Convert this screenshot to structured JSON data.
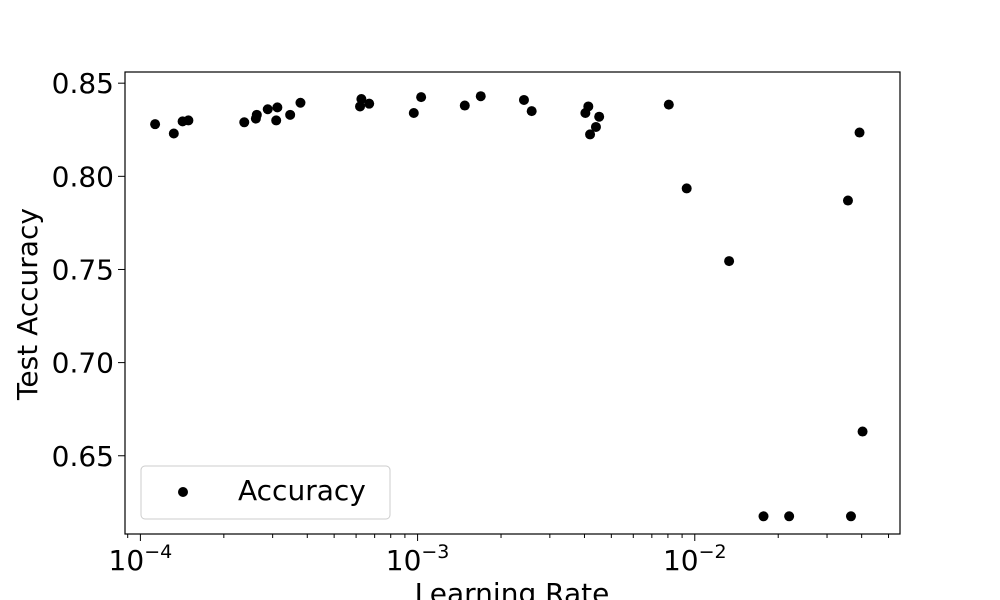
{
  "chart_data": {
    "type": "scatter",
    "xlabel": "Learning Rate",
    "ylabel": "Test Accuracy",
    "xscale": "log",
    "xlim": [
      8.8e-05,
      0.055
    ],
    "ylim": [
      0.608,
      0.856
    ],
    "x_ticks": [
      {
        "value": 0.0001,
        "base": "10",
        "exp": "−4"
      },
      {
        "value": 0.001,
        "base": "10",
        "exp": "−3"
      },
      {
        "value": 0.01,
        "base": "10",
        "exp": "−2"
      }
    ],
    "y_ticks": [
      {
        "value": 0.65,
        "label": "0.65"
      },
      {
        "value": 0.7,
        "label": "0.70"
      },
      {
        "value": 0.75,
        "label": "0.75"
      },
      {
        "value": 0.8,
        "label": "0.80"
      },
      {
        "value": 0.85,
        "label": "0.85"
      }
    ],
    "grid": false,
    "legend": {
      "position": "lower-left",
      "entries": [
        "Accuracy"
      ]
    },
    "series": [
      {
        "name": "Accuracy",
        "color": "#000000",
        "points": [
          {
            "x": 0.000113,
            "y": 0.828
          },
          {
            "x": 0.000132,
            "y": 0.823
          },
          {
            "x": 0.000142,
            "y": 0.8295
          },
          {
            "x": 0.000149,
            "y": 0.83
          },
          {
            "x": 0.000237,
            "y": 0.829
          },
          {
            "x": 0.000261,
            "y": 0.831
          },
          {
            "x": 0.000263,
            "y": 0.833
          },
          {
            "x": 0.000288,
            "y": 0.836
          },
          {
            "x": 0.000309,
            "y": 0.83
          },
          {
            "x": 0.000312,
            "y": 0.837
          },
          {
            "x": 0.000347,
            "y": 0.833
          },
          {
            "x": 0.000378,
            "y": 0.8395
          },
          {
            "x": 0.00062,
            "y": 0.8375
          },
          {
            "x": 0.000627,
            "y": 0.8415
          },
          {
            "x": 0.000669,
            "y": 0.839
          },
          {
            "x": 0.000969,
            "y": 0.834
          },
          {
            "x": 0.00103,
            "y": 0.8425
          },
          {
            "x": 0.00148,
            "y": 0.838
          },
          {
            "x": 0.00169,
            "y": 0.843
          },
          {
            "x": 0.00242,
            "y": 0.841
          },
          {
            "x": 0.00258,
            "y": 0.835
          },
          {
            "x": 0.00403,
            "y": 0.834
          },
          {
            "x": 0.00413,
            "y": 0.8375
          },
          {
            "x": 0.00419,
            "y": 0.8225
          },
          {
            "x": 0.0044,
            "y": 0.8265
          },
          {
            "x": 0.00452,
            "y": 0.832
          },
          {
            "x": 0.00806,
            "y": 0.8385
          },
          {
            "x": 0.00935,
            "y": 0.7935
          },
          {
            "x": 0.0133,
            "y": 0.7545
          },
          {
            "x": 0.0177,
            "y": 0.6175
          },
          {
            "x": 0.0219,
            "y": 0.6175
          },
          {
            "x": 0.0357,
            "y": 0.787
          },
          {
            "x": 0.0366,
            "y": 0.6175
          },
          {
            "x": 0.0393,
            "y": 0.8235
          },
          {
            "x": 0.0403,
            "y": 0.663
          }
        ]
      }
    ]
  }
}
